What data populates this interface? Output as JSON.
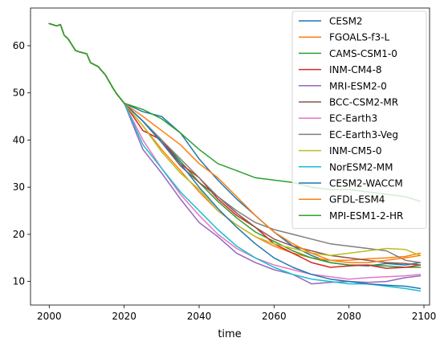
{
  "chart_data": {
    "type": "line",
    "xlabel": "time",
    "ylabel": "",
    "xlim": [
      1995,
      2101.5
    ],
    "ylim": [
      5,
      68
    ],
    "xticks": [
      2000,
      2020,
      2040,
      2060,
      2080,
      2100
    ],
    "yticks": [
      10,
      20,
      30,
      40,
      50,
      60
    ],
    "grid": false,
    "legend_position": "top-right",
    "shared_history": {
      "x": [
        2000,
        2002,
        2003,
        2004,
        2005,
        2007,
        2008,
        2010,
        2011,
        2013,
        2015,
        2017,
        2018,
        2020
      ],
      "y": [
        64.7,
        64.2,
        64.5,
        62.2,
        61.5,
        59.0,
        58.7,
        58.3,
        56.4,
        55.6,
        53.8,
        51.0,
        49.8,
        47.8
      ]
    },
    "series": [
      {
        "name": "CESM2",
        "color": "#1f77b4",
        "x": [
          2020,
          2025,
          2030,
          2035,
          2040,
          2045,
          2050,
          2055,
          2060,
          2065,
          2070,
          2075,
          2080,
          2085,
          2090,
          2095,
          2099
        ],
        "y": [
          47.8,
          46.0,
          45.0,
          41.5,
          36.0,
          31.5,
          27.5,
          24.0,
          20.5,
          17.5,
          15.5,
          14.0,
          13.5,
          13.3,
          13.8,
          13.5,
          14.0
        ]
      },
      {
        "name": "FGOALS-f3-L",
        "color": "#ff7f0e",
        "x": [
          2020,
          2025,
          2030,
          2035,
          2040,
          2045,
          2050,
          2055,
          2060,
          2065,
          2070,
          2075,
          2080,
          2085,
          2090,
          2095,
          2099
        ],
        "y": [
          47.8,
          43.0,
          38.0,
          33.5,
          29.0,
          25.0,
          22.0,
          19.5,
          17.5,
          16.0,
          15.0,
          14.5,
          14.5,
          14.8,
          15.0,
          15.3,
          16.0
        ]
      },
      {
        "name": "CAMS-CSM1-0",
        "color": "#2ca02c",
        "x": [
          2020,
          2025,
          2030,
          2035,
          2040,
          2045,
          2050,
          2055,
          2060,
          2065,
          2070,
          2075,
          2080,
          2085,
          2090,
          2095,
          2099
        ],
        "y": [
          47.8,
          44.0,
          40.0,
          35.5,
          31.0,
          27.0,
          23.5,
          20.5,
          18.5,
          16.5,
          15.0,
          14.0,
          13.5,
          13.5,
          13.3,
          13.0,
          13.0
        ]
      },
      {
        "name": "INM-CM4-8",
        "color": "#d62728",
        "x": [
          2020,
          2025,
          2030,
          2035,
          2040,
          2045,
          2050,
          2055,
          2060,
          2065,
          2070,
          2075,
          2080,
          2085,
          2090,
          2095,
          2099
        ],
        "y": [
          47.8,
          42.0,
          40.0,
          35.0,
          32.0,
          27.5,
          24.0,
          21.5,
          18.0,
          16.0,
          14.0,
          13.0,
          13.3,
          13.5,
          12.8,
          13.0,
          13.5
        ]
      },
      {
        "name": "MRI-ESM2-0",
        "color": "#9467bd",
        "x": [
          2020,
          2025,
          2030,
          2035,
          2040,
          2045,
          2050,
          2055,
          2060,
          2065,
          2070,
          2075,
          2080,
          2085,
          2090,
          2095,
          2099
        ],
        "y": [
          47.8,
          38.0,
          33.0,
          27.5,
          22.5,
          19.5,
          16.0,
          14.0,
          12.5,
          11.5,
          9.5,
          9.8,
          10.0,
          9.8,
          10.0,
          10.8,
          11.2
        ]
      },
      {
        "name": "BCC-CSM2-MR",
        "color": "#8c564b",
        "x": [
          2020,
          2025,
          2030,
          2035,
          2040,
          2045,
          2050,
          2055,
          2060,
          2065,
          2070,
          2075,
          2080,
          2085,
          2090,
          2095,
          2099
        ],
        "y": [
          47.8,
          44.0,
          39.5,
          34.5,
          31.0,
          28.0,
          24.5,
          21.5,
          19.0,
          17.5,
          16.5,
          15.5,
          15.0,
          14.5,
          14.0,
          13.8,
          13.5
        ]
      },
      {
        "name": "EC-Earth3",
        "color": "#e377c2",
        "x": [
          2020,
          2025,
          2030,
          2035,
          2040,
          2045,
          2050,
          2055,
          2060,
          2065,
          2070,
          2075,
          2080,
          2085,
          2090,
          2095,
          2099
        ],
        "y": [
          47.8,
          40.0,
          34.0,
          28.5,
          24.0,
          20.0,
          17.0,
          15.0,
          13.5,
          12.5,
          11.5,
          11.0,
          10.5,
          10.8,
          11.0,
          11.2,
          11.5
        ]
      },
      {
        "name": "EC-Earth3-Veg",
        "color": "#7f7f7f",
        "x": [
          2020,
          2025,
          2030,
          2035,
          2040,
          2045,
          2050,
          2055,
          2060,
          2065,
          2070,
          2075,
          2080,
          2085,
          2090,
          2095,
          2099
        ],
        "y": [
          47.8,
          44.0,
          40.0,
          36.0,
          32.0,
          28.0,
          25.0,
          22.5,
          21.0,
          20.0,
          19.0,
          18.0,
          17.5,
          17.0,
          16.5,
          14.5,
          14.0
        ]
      },
      {
        "name": "INM-CM5-0",
        "color": "#bcbd22",
        "x": [
          2020,
          2025,
          2030,
          2035,
          2040,
          2045,
          2050,
          2055,
          2060,
          2065,
          2070,
          2075,
          2080,
          2085,
          2090,
          2095,
          2099
        ],
        "y": [
          47.8,
          43.0,
          37.5,
          33.0,
          29.5,
          25.0,
          22.0,
          19.5,
          18.0,
          17.0,
          16.0,
          15.5,
          16.0,
          16.5,
          17.0,
          16.8,
          15.5
        ]
      },
      {
        "name": "NorESM2-MM",
        "color": "#17becf",
        "x": [
          2020,
          2025,
          2030,
          2035,
          2040,
          2045,
          2050,
          2055,
          2060,
          2065,
          2070,
          2075,
          2080,
          2085,
          2090,
          2095,
          2099
        ],
        "y": [
          47.8,
          39.0,
          34.0,
          29.0,
          25.0,
          21.0,
          17.5,
          15.0,
          13.0,
          11.5,
          10.5,
          10.0,
          9.5,
          9.5,
          9.0,
          8.5,
          8.0
        ]
      },
      {
        "name": "CESM2-WACCM",
        "color": "#1f77b4",
        "x": [
          2020,
          2025,
          2030,
          2035,
          2040,
          2045,
          2050,
          2055,
          2060,
          2065,
          2070,
          2075,
          2080,
          2085,
          2090,
          2095,
          2099
        ],
        "y": [
          47.8,
          44.0,
          39.5,
          35.0,
          30.0,
          25.5,
          21.5,
          18.0,
          15.0,
          13.0,
          11.5,
          10.5,
          10.0,
          9.5,
          9.2,
          9.0,
          8.5
        ]
      },
      {
        "name": "GFDL-ESM4",
        "color": "#ff7f0e",
        "x": [
          2020,
          2025,
          2030,
          2035,
          2040,
          2045,
          2050,
          2055,
          2060,
          2065,
          2070,
          2075,
          2080,
          2085,
          2090,
          2095,
          2099
        ],
        "y": [
          47.8,
          45.0,
          42.0,
          39.0,
          35.0,
          32.0,
          28.0,
          24.0,
          20.5,
          18.0,
          16.0,
          14.5,
          14.0,
          14.0,
          14.5,
          15.0,
          15.5
        ]
      },
      {
        "name": "MPI-ESM1-2-HR",
        "color": "#2ca02c",
        "x": [
          2020,
          2025,
          2030,
          2035,
          2040,
          2045,
          2050,
          2055,
          2060,
          2065,
          2070,
          2075,
          2080,
          2085,
          2090,
          2095,
          2099
        ],
        "y": [
          47.8,
          46.5,
          44.5,
          41.5,
          38.0,
          35.0,
          33.5,
          32.0,
          31.5,
          31.0,
          30.0,
          29.5,
          29.5,
          29.0,
          28.5,
          28.0,
          27.0
        ]
      }
    ]
  }
}
